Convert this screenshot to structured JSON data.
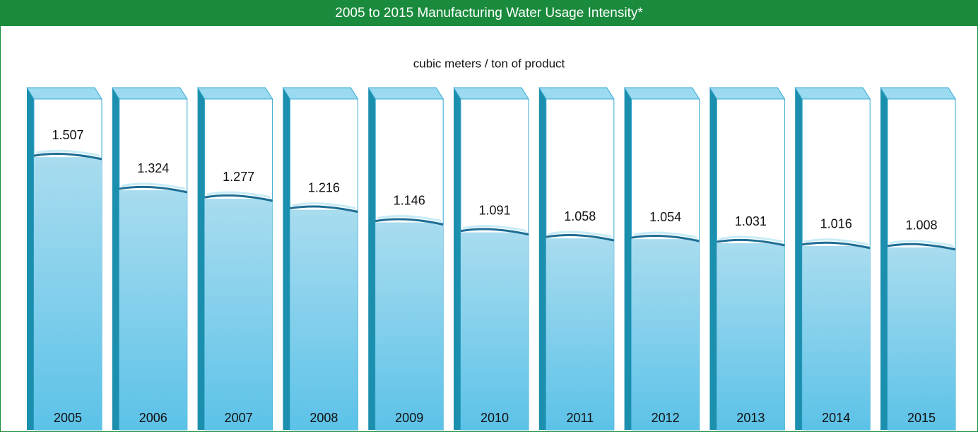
{
  "chart_data": {
    "type": "bar",
    "title": "2005 to 2015 Manufacturing Water Usage Intensity*",
    "subtitle": "cubic meters / ton of product",
    "categories": [
      "2005",
      "2006",
      "2007",
      "2008",
      "2009",
      "2010",
      "2011",
      "2012",
      "2013",
      "2014",
      "2015"
    ],
    "values": [
      1.507,
      1.324,
      1.277,
      1.216,
      1.146,
      1.091,
      1.058,
      1.054,
      1.031,
      1.016,
      1.008
    ],
    "color": "#7dcdea"
  }
}
